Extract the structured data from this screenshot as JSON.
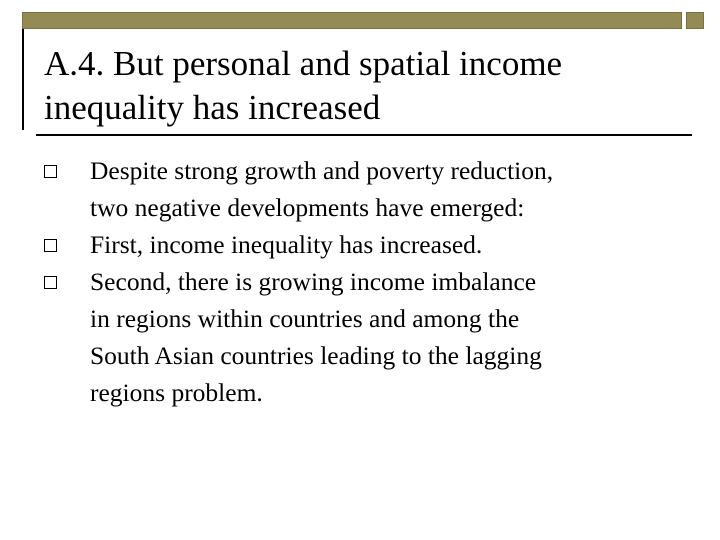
{
  "decor": {
    "accent_color": "#948a54",
    "band_icon": "header-band",
    "square_icon": "corner-square"
  },
  "slide": {
    "title_lines": [
      "A.4. But personal and spatial income",
      "inequality has increased"
    ],
    "bullet_icon": "hollow-square-bullet-icon",
    "bullets": [
      {
        "lines": [
          "Despite strong growth and poverty reduction,",
          "two negative developments have emerged:"
        ]
      },
      {
        "lines": [
          "First, income inequality has increased."
        ]
      },
      {
        "lines": [
          "Second, there is growing income imbalance",
          "in regions within countries and among the",
          "South Asian countries leading to the lagging",
          "regions problem."
        ]
      }
    ]
  }
}
